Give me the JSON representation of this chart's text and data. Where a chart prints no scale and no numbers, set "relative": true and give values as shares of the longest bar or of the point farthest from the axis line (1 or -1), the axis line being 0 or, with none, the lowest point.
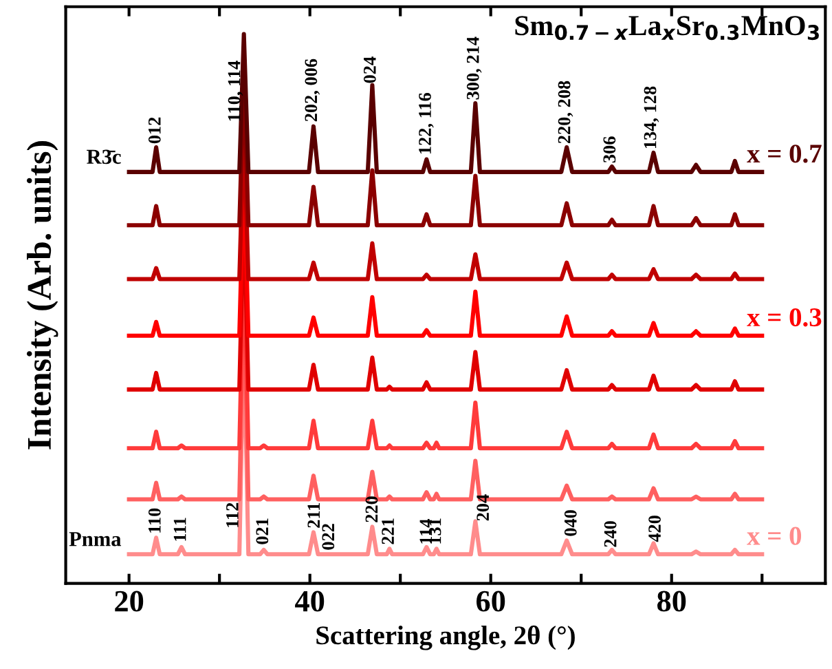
{
  "chart_data": {
    "type": "line",
    "relative": true,
    "title": "Sm$_{0.7−x}$La$_{x}$Sr$_{0.3}$MnO$_{3}$",
    "xlabel": "Scattering angle, 2θ (°)",
    "ylabel": "Intensity (Arb. units)",
    "xlim": [
      13,
      97
    ],
    "xticks": [
      20,
      {
        "value": 30,
        "label": null
      },
      40,
      {
        "value": 50,
        "label": null
      },
      60,
      {
        "value": 70,
        "label": null
      },
      80,
      {
        "value": 90,
        "label": null
      }
    ],
    "grid": false,
    "legend": false,
    "marker": "none",
    "line_style": "solid",
    "x": [
      20,
      22.6,
      23.0,
      23.4,
      25.4,
      25.8,
      26.2,
      32.2,
      32.7,
      33.2,
      34.5,
      34.9,
      35.3,
      39.9,
      40.4,
      40.9,
      46.4,
      46.9,
      47.4,
      48.5,
      48.8,
      49.1,
      52.5,
      52.9,
      53.3,
      53.7,
      54.0,
      54.3,
      57.8,
      58.3,
      58.8,
      67.8,
      68.4,
      69.0,
      73.0,
      73.4,
      73.8,
      77.5,
      78.0,
      78.5,
      82.2,
      82.7,
      83.2,
      86.6,
      87.0,
      87.4,
      90
    ],
    "series": [
      {
        "name": "x = 0",
        "color": "#ff8c8c",
        "values": [
          0.053,
          0.053,
          0.083,
          0.053,
          0.053,
          0.066,
          0.053,
          0.053,
          0.454,
          0.053,
          0.053,
          0.061,
          0.053,
          0.053,
          0.093,
          0.053,
          0.053,
          0.103,
          0.053,
          0.053,
          0.063,
          0.053,
          0.053,
          0.066,
          0.053,
          0.053,
          0.063,
          0.053,
          0.053,
          0.113,
          0.053,
          0.053,
          0.078,
          0.053,
          0.053,
          0.061,
          0.053,
          0.053,
          0.073,
          0.053,
          0.053,
          0.058,
          0.053,
          0.053,
          0.061,
          0.053,
          0.053
        ]
      },
      {
        "color": "#ff6060",
        "values": [
          0.153,
          0.153,
          0.183,
          0.153,
          0.153,
          0.158,
          0.153,
          0.153,
          0.529,
          0.153,
          0.153,
          0.158,
          0.153,
          0.153,
          0.196,
          0.153,
          0.153,
          0.203,
          0.153,
          0.153,
          0.158,
          0.153,
          0.153,
          0.166,
          0.153,
          0.153,
          0.163,
          0.153,
          0.153,
          0.223,
          0.153,
          0.153,
          0.178,
          0.153,
          0.153,
          0.158,
          0.153,
          0.153,
          0.173,
          0.153,
          0.153,
          0.158,
          0.153,
          0.153,
          0.163,
          0.153,
          0.153
        ]
      },
      {
        "color": "#ff3a3a",
        "values": [
          0.246,
          0.246,
          0.276,
          0.246,
          0.246,
          0.251,
          0.246,
          0.246,
          0.597,
          0.246,
          0.246,
          0.251,
          0.246,
          0.246,
          0.296,
          0.246,
          0.246,
          0.296,
          0.246,
          0.246,
          0.251,
          0.246,
          0.246,
          0.256,
          0.246,
          0.246,
          0.256,
          0.246,
          0.246,
          0.329,
          0.246,
          0.246,
          0.276,
          0.246,
          0.246,
          0.254,
          0.246,
          0.246,
          0.271,
          0.246,
          0.246,
          0.254,
          0.246,
          0.246,
          0.259,
          0.246,
          0.246
        ]
      },
      {
        "color": "#e00000",
        "values": [
          0.353,
          0.353,
          0.383,
          0.353,
          0.353,
          0.353,
          0.353,
          0.353,
          0.679,
          0.353,
          0.353,
          0.353,
          0.353,
          0.353,
          0.398,
          0.353,
          0.353,
          0.411,
          0.353,
          0.353,
          0.358,
          0.353,
          0.353,
          0.366,
          0.353,
          0.353,
          0.353,
          0.353,
          0.353,
          0.421,
          0.353,
          0.353,
          0.388,
          0.353,
          0.353,
          0.361,
          0.353,
          0.353,
          0.378,
          0.353,
          0.353,
          0.361,
          0.353,
          0.353,
          0.368,
          0.353,
          0.353
        ]
      },
      {
        "name": "x = 0.3",
        "color": "#ff0000",
        "values": [
          0.451,
          0.451,
          0.476,
          0.451,
          0.451,
          0.451,
          0.451,
          0.451,
          0.752,
          0.451,
          0.451,
          0.451,
          0.451,
          0.451,
          0.484,
          0.451,
          0.451,
          0.521,
          0.451,
          0.451,
          0.451,
          0.451,
          0.451,
          0.461,
          0.451,
          0.451,
          0.451,
          0.451,
          0.451,
          0.531,
          0.451,
          0.451,
          0.486,
          0.451,
          0.451,
          0.459,
          0.451,
          0.451,
          0.474,
          0.451,
          0.451,
          0.459,
          0.451,
          0.451,
          0.464,
          0.451,
          0.451
        ]
      },
      {
        "color": "#c00000",
        "values": [
          0.554,
          0.554,
          0.574,
          0.554,
          0.554,
          0.554,
          0.554,
          0.554,
          0.83,
          0.554,
          0.554,
          0.554,
          0.554,
          0.554,
          0.584,
          0.554,
          0.554,
          0.619,
          0.554,
          0.554,
          0.554,
          0.554,
          0.554,
          0.562,
          0.554,
          0.554,
          0.554,
          0.554,
          0.554,
          0.599,
          0.554,
          0.554,
          0.584,
          0.554,
          0.554,
          0.562,
          0.554,
          0.554,
          0.572,
          0.554,
          0.554,
          0.562,
          0.554,
          0.554,
          0.564,
          0.554,
          0.554
        ]
      },
      {
        "color": "#8b0000",
        "values": [
          0.652,
          0.652,
          0.687,
          0.652,
          0.652,
          0.652,
          0.652,
          0.652,
          0.928,
          0.652,
          0.652,
          0.652,
          0.652,
          0.652,
          0.722,
          0.652,
          0.652,
          0.752,
          0.652,
          0.652,
          0.652,
          0.652,
          0.652,
          0.672,
          0.652,
          0.652,
          0.652,
          0.652,
          0.652,
          0.742,
          0.652,
          0.652,
          0.692,
          0.652,
          0.652,
          0.662,
          0.652,
          0.652,
          0.687,
          0.652,
          0.652,
          0.665,
          0.652,
          0.652,
          0.672,
          0.652,
          0.652
        ]
      },
      {
        "name": "x = 0.7",
        "color": "#5a0000",
        "values": [
          0.749,
          0.749,
          0.794,
          0.749,
          0.749,
          0.749,
          0.749,
          0.749,
          1.0,
          0.749,
          0.749,
          0.749,
          0.749,
          0.749,
          0.832,
          0.749,
          0.749,
          0.907,
          0.749,
          0.749,
          0.749,
          0.749,
          0.749,
          0.772,
          0.749,
          0.749,
          0.749,
          0.749,
          0.749,
          0.874,
          0.749,
          0.749,
          0.794,
          0.749,
          0.749,
          0.759,
          0.749,
          0.749,
          0.784,
          0.749,
          0.749,
          0.762,
          0.749,
          0.749,
          0.769,
          0.749,
          0.749
        ]
      }
    ],
    "annotations": [
      "R3̄c",
      "Pnma",
      {
        "text": "012",
        "x": 23.0,
        "y": 0.8
      },
      {
        "text": "110, 114",
        "x": 31.8,
        "y": 0.84
      },
      {
        "text": "202, 006",
        "x": 40.3,
        "y": 0.84
      },
      {
        "text": "024",
        "x": 46.8,
        "y": 0.91
      },
      {
        "text": "122, 116",
        "x": 52.9,
        "y": 0.78
      },
      {
        "text": "300, 214",
        "x": 58.2,
        "y": 0.88
      },
      {
        "text": "220, 208",
        "x": 68.3,
        "y": 0.8
      },
      {
        "text": "306",
        "x": 73.3,
        "y": 0.765
      },
      {
        "text": "134, 128",
        "x": 77.8,
        "y": 0.79
      },
      {
        "text": "110",
        "x": 23.0,
        "y": 0.09
      },
      {
        "text": "111",
        "x": 25.8,
        "y": 0.075
      },
      {
        "text": "112",
        "x": 31.6,
        "y": 0.1
      },
      {
        "text": "021",
        "x": 34.9,
        "y": 0.07
      },
      {
        "text": "211",
        "x": 40.6,
        "y": 0.1
      },
      {
        "text": "022",
        "x": 42.2,
        "y": 0.06
      },
      {
        "text": "220",
        "x": 47.0,
        "y": 0.11
      },
      {
        "text": "221",
        "x": 48.8,
        "y": 0.07
      },
      {
        "text": "114",
        "x": 53.0,
        "y": 0.07
      },
      {
        "text": "131",
        "x": 54.0,
        "y": 0.07
      },
      {
        "text": "204",
        "x": 59.3,
        "y": 0.113
      },
      {
        "text": "040",
        "x": 69.0,
        "y": 0.085
      },
      {
        "text": "240",
        "x": 73.4,
        "y": 0.065
      },
      {
        "text": "420",
        "x": 78.3,
        "y": 0.075
      }
    ]
  }
}
